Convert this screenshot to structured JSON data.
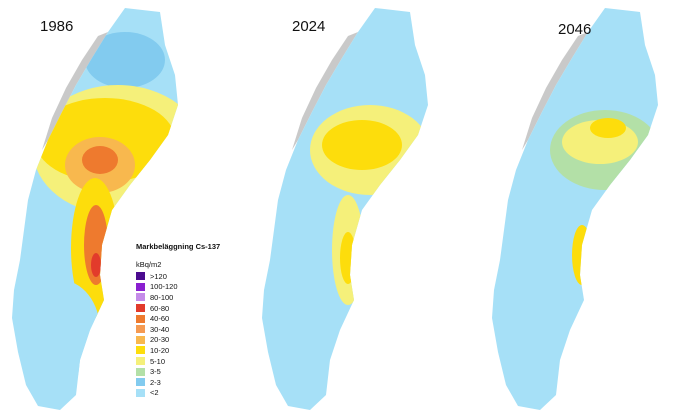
{
  "panels": [
    {
      "year": "1986"
    },
    {
      "year": "2024"
    },
    {
      "year": "2046"
    }
  ],
  "legend": {
    "title": "Markbeläggning Cs-137",
    "unit": "kBq/m2",
    "classes": [
      {
        "label": ">120",
        "color": "#4b0b8f"
      },
      {
        "label": "100-120",
        "color": "#8a1fd0"
      },
      {
        "label": "80-100",
        "color": "#c58be9"
      },
      {
        "label": "60-80",
        "color": "#e23b2b"
      },
      {
        "label": "40-60",
        "color": "#ee7a2e"
      },
      {
        "label": "30-40",
        "color": "#f59a52"
      },
      {
        "label": "20-30",
        "color": "#f8b84e"
      },
      {
        "label": "10-20",
        "color": "#fddd0c"
      },
      {
        "label": "5-10",
        "color": "#f5f07a"
      },
      {
        "label": "3-5",
        "color": "#b3e0a7"
      },
      {
        "label": "2-3",
        "color": "#82cbef"
      },
      {
        "label": "<2",
        "color": "#a6e0f7"
      }
    ]
  },
  "neighbor_land_color": "#c9c9c9"
}
